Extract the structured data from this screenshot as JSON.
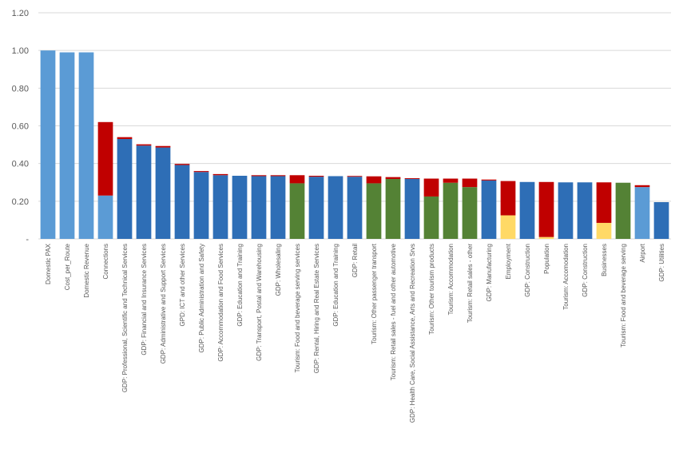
{
  "chart_data": {
    "type": "bar",
    "stacked": true,
    "title": "",
    "xlabel": "",
    "ylabel": "",
    "ylim": [
      0,
      1.2
    ],
    "yticks": [
      {
        "value": 0,
        "label": "-"
      },
      {
        "value": 0.2,
        "label": "0.20"
      },
      {
        "value": 0.4,
        "label": "0.40"
      },
      {
        "value": 0.6,
        "label": "0.60"
      },
      {
        "value": 0.8,
        "label": "0.80"
      },
      {
        "value": 1.0,
        "label": "1.00"
      },
      {
        "value": 1.2,
        "label": "1.20"
      }
    ],
    "grid": "horizontal",
    "legend": "none",
    "colors": {
      "dark_blue": "#2E6EB6",
      "light_blue": "#5B9BD5",
      "red": "#C00000",
      "green": "#548235",
      "yellow": "#FFD966"
    },
    "categories": [
      {
        "label": "Domestic PAX",
        "segments": [
          {
            "value": 1.0,
            "color": "light_blue"
          }
        ]
      },
      {
        "label": "Cost_per_Route",
        "segments": [
          {
            "value": 0.99,
            "color": "light_blue"
          }
        ]
      },
      {
        "label": "Domestic Revenue",
        "segments": [
          {
            "value": 0.99,
            "color": "light_blue"
          }
        ]
      },
      {
        "label": "Connections",
        "segments": [
          {
            "value": 0.23,
            "color": "light_blue"
          },
          {
            "value": 0.39,
            "color": "red"
          }
        ]
      },
      {
        "label": "GDP: Professional, Scientific and Technical Services",
        "segments": [
          {
            "value": 0.53,
            "color": "dark_blue"
          },
          {
            "value": 0.01,
            "color": "red"
          }
        ]
      },
      {
        "label": "GDP: Financial and Insurance Services",
        "segments": [
          {
            "value": 0.495,
            "color": "dark_blue"
          },
          {
            "value": 0.007,
            "color": "red"
          }
        ]
      },
      {
        "label": "GDP: Administrative and Support Services",
        "segments": [
          {
            "value": 0.485,
            "color": "dark_blue"
          },
          {
            "value": 0.008,
            "color": "red"
          }
        ]
      },
      {
        "label": "GPD: ICT and other Services",
        "segments": [
          {
            "value": 0.392,
            "color": "dark_blue"
          },
          {
            "value": 0.006,
            "color": "red"
          }
        ]
      },
      {
        "label": "GDP: Public Administration and Safety",
        "segments": [
          {
            "value": 0.355,
            "color": "dark_blue"
          },
          {
            "value": 0.005,
            "color": "red"
          }
        ]
      },
      {
        "label": "GDP: Accommodation and Food Services",
        "segments": [
          {
            "value": 0.338,
            "color": "dark_blue"
          },
          {
            "value": 0.006,
            "color": "red"
          }
        ]
      },
      {
        "label": "GDP: Education and Training",
        "segments": [
          {
            "value": 0.335,
            "color": "dark_blue"
          }
        ]
      },
      {
        "label": "GDP: Transport, Postal and Warehousing",
        "segments": [
          {
            "value": 0.333,
            "color": "dark_blue"
          },
          {
            "value": 0.005,
            "color": "red"
          }
        ]
      },
      {
        "label": "GDP: Wholesaling",
        "segments": [
          {
            "value": 0.333,
            "color": "dark_blue"
          },
          {
            "value": 0.005,
            "color": "red"
          }
        ]
      },
      {
        "label": "Tourism: Food and beverage serving services",
        "segments": [
          {
            "value": 0.295,
            "color": "green"
          },
          {
            "value": 0.043,
            "color": "red"
          }
        ]
      },
      {
        "label": "GDP: Rental, Hiring and Real Estate Services",
        "segments": [
          {
            "value": 0.33,
            "color": "dark_blue"
          },
          {
            "value": 0.005,
            "color": "red"
          }
        ]
      },
      {
        "label": "GDP: Education and Training",
        "segments": [
          {
            "value": 0.333,
            "color": "dark_blue"
          }
        ]
      },
      {
        "label": "GDP: Retail",
        "segments": [
          {
            "value": 0.33,
            "color": "dark_blue"
          },
          {
            "value": 0.004,
            "color": "red"
          }
        ]
      },
      {
        "label": "Tourism: Other passenger transport",
        "segments": [
          {
            "value": 0.295,
            "color": "green"
          },
          {
            "value": 0.037,
            "color": "red"
          }
        ]
      },
      {
        "label": "Tourism: Retail sales - fuel and other automotive",
        "segments": [
          {
            "value": 0.318,
            "color": "green"
          },
          {
            "value": 0.01,
            "color": "red"
          }
        ]
      },
      {
        "label": "GDP: Health Care, Social Assistance, Arts and Recreation Srvs",
        "segments": [
          {
            "value": 0.318,
            "color": "dark_blue"
          },
          {
            "value": 0.004,
            "color": "red"
          }
        ]
      },
      {
        "label": "Tourism: Other tourism products",
        "segments": [
          {
            "value": 0.225,
            "color": "green"
          },
          {
            "value": 0.095,
            "color": "red"
          }
        ]
      },
      {
        "label": "Tourism: Accommodation",
        "segments": [
          {
            "value": 0.298,
            "color": "green"
          },
          {
            "value": 0.022,
            "color": "red"
          }
        ]
      },
      {
        "label": "Tourism: Retail sales - other",
        "segments": [
          {
            "value": 0.275,
            "color": "green"
          },
          {
            "value": 0.045,
            "color": "red"
          }
        ]
      },
      {
        "label": "GDP: Manufacturing",
        "segments": [
          {
            "value": 0.31,
            "color": "dark_blue"
          },
          {
            "value": 0.005,
            "color": "red"
          }
        ]
      },
      {
        "label": "Employment",
        "segments": [
          {
            "value": 0.125,
            "color": "yellow"
          },
          {
            "value": 0.182,
            "color": "red"
          }
        ]
      },
      {
        "label": "GDP: Construction",
        "segments": [
          {
            "value": 0.302,
            "color": "dark_blue"
          }
        ]
      },
      {
        "label": "Population",
        "segments": [
          {
            "value": 0.01,
            "color": "yellow"
          },
          {
            "value": 0.292,
            "color": "red"
          }
        ]
      },
      {
        "label": "Tourism: Accomodation",
        "segments": [
          {
            "value": 0.3,
            "color": "dark_blue"
          }
        ]
      },
      {
        "label": "GDP: Construction",
        "segments": [
          {
            "value": 0.3,
            "color": "dark_blue"
          }
        ]
      },
      {
        "label": "Businesses",
        "segments": [
          {
            "value": 0.085,
            "color": "yellow"
          },
          {
            "value": 0.215,
            "color": "red"
          }
        ]
      },
      {
        "label": "Tourism: Food and beverage serving",
        "segments": [
          {
            "value": 0.298,
            "color": "green"
          }
        ]
      },
      {
        "label": "Airport",
        "segments": [
          {
            "value": 0.275,
            "color": "light_blue"
          },
          {
            "value": 0.01,
            "color": "red"
          }
        ]
      },
      {
        "label": "GDP: Utilities",
        "segments": [
          {
            "value": 0.195,
            "color": "dark_blue"
          }
        ]
      }
    ]
  }
}
